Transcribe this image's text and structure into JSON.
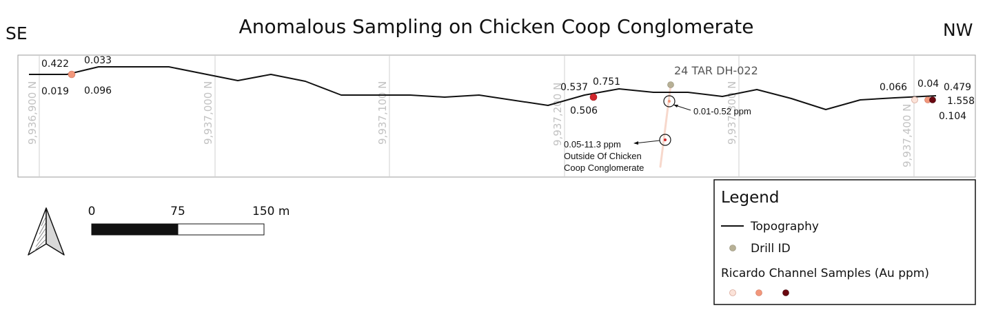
{
  "title": "Anomalous Sampling on Chicken Coop Conglomerate",
  "direction_left": "SE",
  "direction_right": "NW",
  "grid_lines": [
    {
      "label": "9,936,900 N",
      "northing": 9936900
    },
    {
      "label": "9,937,000 N",
      "northing": 9937000
    },
    {
      "label": "9,937,100 N",
      "northing": 9937100
    },
    {
      "label": "9,937,200 N",
      "northing": 9937200
    },
    {
      "label": "9,937,300 N",
      "northing": 9937300
    },
    {
      "label": "9,937,400 N",
      "northing": 9937400
    }
  ],
  "drill_hole": {
    "id": "24 TAR DH-022",
    "annotations": [
      {
        "text": "0.01-0.52 ppm"
      },
      {
        "lines": [
          "0.05-11.3 ppm",
          "Outside Of Chicken",
          "Coop Conglomerate"
        ]
      }
    ]
  },
  "sample_values": [
    "0.422",
    "0.033",
    "0.019",
    "0.096",
    "0.537",
    "0.751",
    "0.506",
    "0.066",
    "0.04",
    "0.479",
    "1.558",
    "0.104"
  ],
  "scale_bar": {
    "labels": [
      "0",
      "75",
      "150 m"
    ]
  },
  "legend": {
    "title": "Legend",
    "topography": "Topography",
    "drill_id": "Drill ID",
    "channel_samples": "Ricardo Channel Samples (Au ppm)"
  },
  "colors": {
    "drill": "#b7b095",
    "sample_low": "#fbe3d9",
    "sample_mid": "#f2977b",
    "sample_high_red": "#d0272d",
    "sample_high_dark": "#6a0710",
    "topography": "#111111",
    "grid": "#cfcfcf"
  }
}
